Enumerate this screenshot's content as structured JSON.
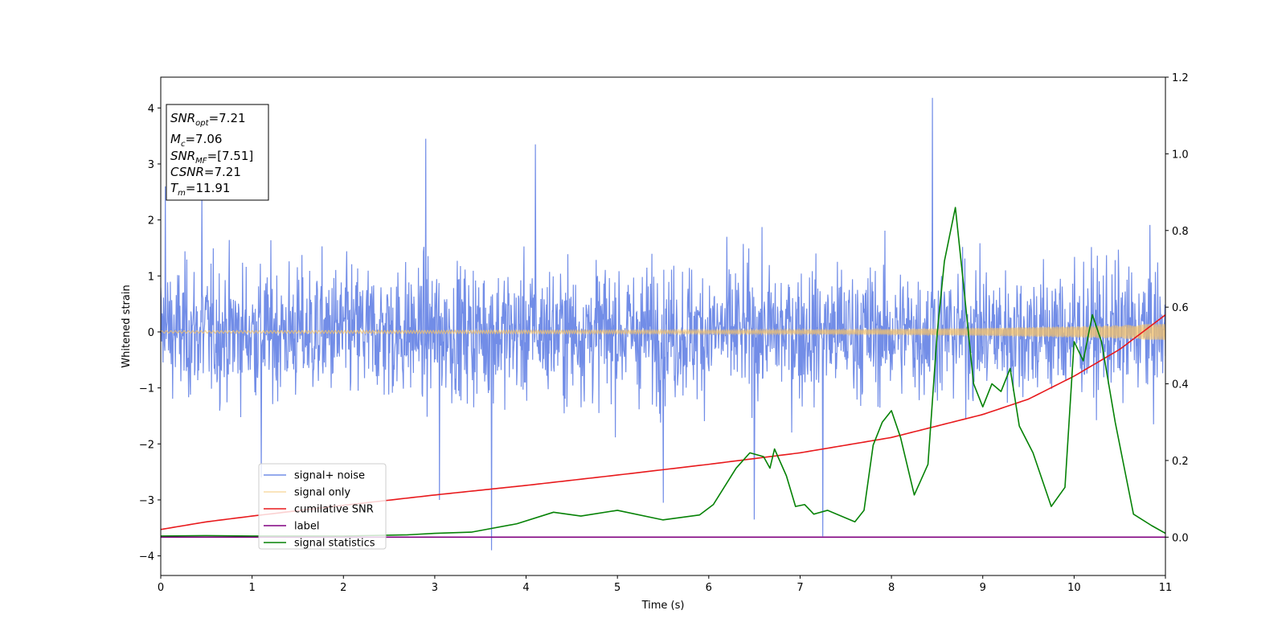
{
  "chart_data": {
    "type": "line",
    "title": "",
    "xlabel": "Time (s)",
    "ylabel": "Whitened strain",
    "xlim": [
      0,
      11
    ],
    "ylim_left": [
      -4.35,
      4.55
    ],
    "ylim_right": [
      -0.1,
      1.2
    ],
    "x_ticks": [
      "0",
      "1",
      "2",
      "3",
      "4",
      "5",
      "6",
      "7",
      "8",
      "9",
      "10",
      "11"
    ],
    "y_ticks_left": [
      "−4",
      "−3",
      "−2",
      "−1",
      "0",
      "1",
      "2",
      "3",
      "4"
    ],
    "y_ticks_right": [
      "0.0",
      "0.2",
      "0.4",
      "0.6",
      "0.8",
      "1.0",
      "1.2"
    ],
    "grid": false,
    "legend_position": "lower-left",
    "series": [
      {
        "name": "signal+ noise",
        "axis": "left",
        "color": "#6a87e6",
        "description": "whitened noisy time series, roughly ±1.6 with spikes up to 4.2 near t=8.45 and down to -3.9 near t=3.62",
        "spikes": [
          [
            0.05,
            2.6
          ],
          [
            0.45,
            2.5
          ],
          [
            1.1,
            -2.6
          ],
          [
            2.9,
            3.45
          ],
          [
            3.05,
            -3.0
          ],
          [
            3.62,
            -3.9
          ],
          [
            4.1,
            3.35
          ],
          [
            5.5,
            -3.05
          ],
          [
            6.5,
            -3.35
          ],
          [
            7.25,
            -3.65
          ],
          [
            8.45,
            4.18
          ]
        ]
      },
      {
        "name": "signal only",
        "axis": "left",
        "color": "#f5c36a",
        "envelope": {
          "x": [
            0,
            2,
            4,
            6,
            7,
            8,
            9,
            10,
            10.5,
            11
          ],
          "amp": [
            0.02,
            0.025,
            0.03,
            0.035,
            0.04,
            0.05,
            0.07,
            0.1,
            0.12,
            0.15
          ]
        }
      },
      {
        "name": "cumilative SNR",
        "axis": "right",
        "color": "#e8191c",
        "x": [
          0,
          0.5,
          1,
          2,
          3,
          4,
          5,
          6,
          7,
          8,
          9,
          9.5,
          10,
          10.5,
          11
        ],
        "y": [
          0.02,
          0.04,
          0.055,
          0.083,
          0.11,
          0.135,
          0.162,
          0.19,
          0.22,
          0.26,
          0.32,
          0.36,
          0.42,
          0.49,
          0.58
        ]
      },
      {
        "name": "label",
        "axis": "right",
        "color": "#800080",
        "x": [
          0,
          11
        ],
        "y": [
          0,
          0
        ]
      },
      {
        "name": "signal statistics",
        "axis": "right",
        "color": "#068206",
        "x": [
          0,
          0.5,
          1,
          2,
          2.7,
          3,
          3.4,
          3.9,
          4.3,
          4.6,
          5,
          5.5,
          5.9,
          6.05,
          6.3,
          6.45,
          6.6,
          6.67,
          6.72,
          6.85,
          6.95,
          7.05,
          7.15,
          7.3,
          7.6,
          7.7,
          7.8,
          7.9,
          8.0,
          8.1,
          8.25,
          8.4,
          8.5,
          8.58,
          8.7,
          8.78,
          8.9,
          9.0,
          9.1,
          9.2,
          9.3,
          9.4,
          9.55,
          9.75,
          9.9,
          10.0,
          10.1,
          10.2,
          10.3,
          10.45,
          10.65,
          10.85,
          11
        ],
        "y": [
          0.003,
          0.004,
          0.003,
          0.003,
          0.006,
          0.01,
          0.013,
          0.035,
          0.065,
          0.055,
          0.07,
          0.045,
          0.058,
          0.085,
          0.18,
          0.22,
          0.21,
          0.18,
          0.23,
          0.16,
          0.08,
          0.085,
          0.06,
          0.07,
          0.04,
          0.07,
          0.24,
          0.3,
          0.33,
          0.26,
          0.11,
          0.19,
          0.53,
          0.72,
          0.86,
          0.68,
          0.4,
          0.34,
          0.4,
          0.38,
          0.44,
          0.29,
          0.22,
          0.08,
          0.13,
          0.51,
          0.46,
          0.58,
          0.51,
          0.3,
          0.06,
          0.03,
          0.01
        ]
      }
    ],
    "annotation": {
      "lines": [
        {
          "base": "SNR",
          "sub": "opt",
          "text": "=7.21"
        },
        {
          "base": "M",
          "sub": "c",
          "text": "=7.06"
        },
        {
          "base": "SNR",
          "sub": "MF",
          "text": "=[7.51]"
        },
        {
          "base": "CSNR",
          "sub": "",
          "text": "=7.21"
        },
        {
          "base": "T",
          "sub": "m",
          "text": "=11.91"
        }
      ]
    }
  }
}
